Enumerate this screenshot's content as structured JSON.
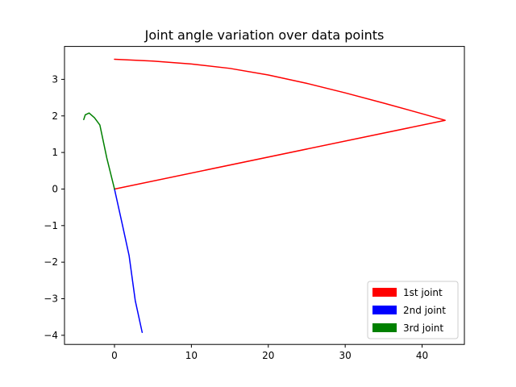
{
  "chart_data": {
    "type": "line",
    "title": "Joint angle variation over data points",
    "xlabel": "",
    "ylabel": "",
    "xlim": [
      -6.5,
      45.5
    ],
    "ylim": [
      -4.25,
      3.9
    ],
    "xticks": [
      0,
      10,
      20,
      30,
      40
    ],
    "yticks": [
      -4,
      -3,
      -2,
      -1,
      0,
      1,
      2,
      3
    ],
    "xtick_labels": [
      "0",
      "10",
      "20",
      "30",
      "40"
    ],
    "ytick_labels": [
      "−4",
      "−3",
      "−2",
      "−1",
      "0",
      "1",
      "2",
      "3"
    ],
    "grid": false,
    "legend_position": "lower-right",
    "series": [
      {
        "name": "1st joint",
        "color": "#ff0000",
        "points": [
          [
            0,
            0
          ],
          [
            43.0,
            1.88
          ],
          [
            40.0,
            2.06
          ],
          [
            35.0,
            2.35
          ],
          [
            30.0,
            2.63
          ],
          [
            25.0,
            2.89
          ],
          [
            20.0,
            3.12
          ],
          [
            15.0,
            3.3
          ],
          [
            10.0,
            3.42
          ],
          [
            5.0,
            3.5
          ],
          [
            0,
            3.55
          ]
        ]
      },
      {
        "name": "2nd joint",
        "color": "#0000ff",
        "points": [
          [
            0,
            0
          ],
          [
            1.0,
            -0.95
          ],
          [
            1.9,
            -1.82
          ],
          [
            2.7,
            -3.05
          ],
          [
            3.6,
            -3.92
          ]
        ]
      },
      {
        "name": "3rd joint",
        "color": "#008000",
        "points": [
          [
            0,
            0
          ],
          [
            -1.0,
            0.85
          ],
          [
            -1.9,
            1.75
          ],
          [
            -2.6,
            1.95
          ],
          [
            -3.3,
            2.08
          ],
          [
            -3.8,
            2.03
          ],
          [
            -4.0,
            1.9
          ]
        ]
      }
    ]
  }
}
